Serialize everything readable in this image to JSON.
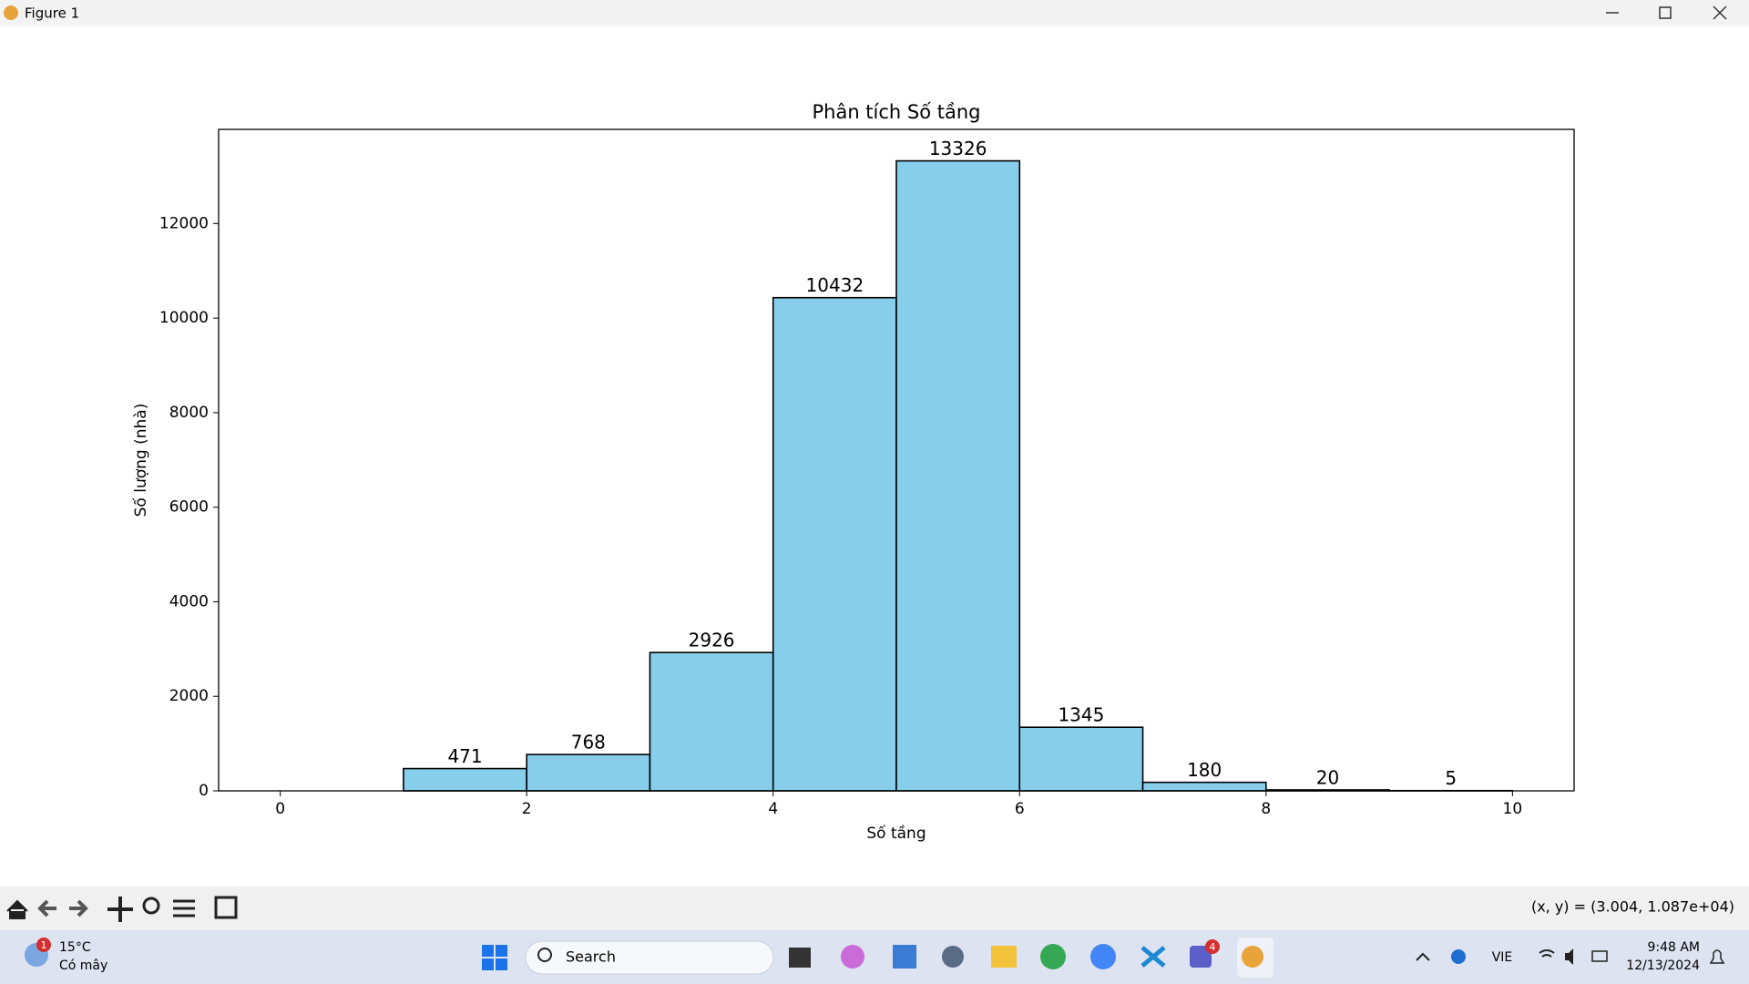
{
  "window": {
    "title": "Figure 1",
    "status": "(x, y) = (3.004, 1.087e+04)"
  },
  "taskbar": {
    "weather_badge": "1",
    "weather_temp": "15°C",
    "weather_text": "Có mây",
    "search": "Search",
    "teams_badge": "4",
    "language": "VIE",
    "time": "9:48 AM",
    "date": "12/13/2024"
  },
  "chart_data": {
    "type": "histogram",
    "title": "Phân tích Số tầng",
    "x_label": "Số tầng",
    "y_label": "Số lượng (nhà)",
    "bins": [
      0,
      1,
      2,
      3,
      4,
      5,
      6,
      7,
      8,
      9,
      10
    ],
    "values": [
      0,
      471,
      768,
      2926,
      10432,
      13326,
      1345,
      180,
      20,
      5
    ],
    "color": "#87ceeb",
    "edgecolor": "#000000",
    "xlim": [
      -0.5,
      10.5
    ],
    "ylim": [
      0,
      13992
    ],
    "xticks": [
      0,
      2,
      4,
      6,
      8,
      10
    ],
    "yticks": [
      0,
      2000,
      4000,
      6000,
      8000,
      10000,
      12000
    ]
  }
}
